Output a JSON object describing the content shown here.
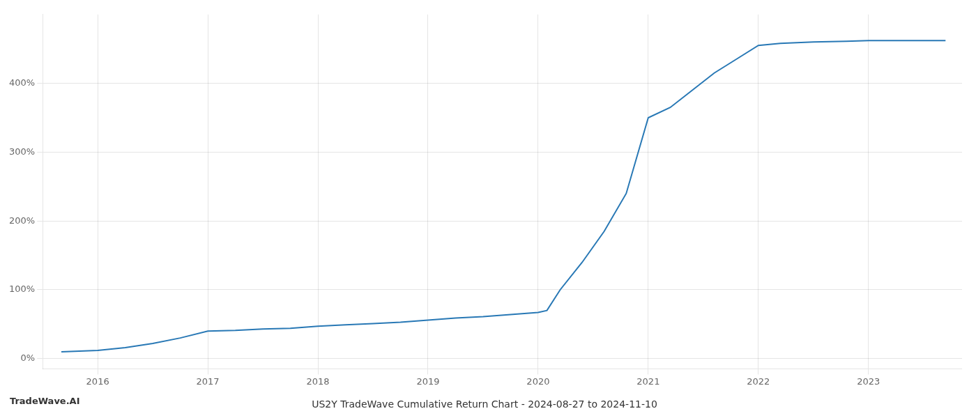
{
  "chart_data": {
    "type": "line",
    "title": "US2Y TradeWave Cumulative Return Chart - 2024-08-27 to 2024-11-10",
    "annotations": [
      "TradeWave.AI"
    ],
    "x": [
      2015.67,
      2016.0,
      2016.25,
      2016.5,
      2016.75,
      2017.0,
      2017.25,
      2017.5,
      2017.75,
      2018.0,
      2018.25,
      2018.5,
      2018.75,
      2019.0,
      2019.25,
      2019.5,
      2019.75,
      2020.0,
      2020.08,
      2020.2,
      2020.4,
      2020.6,
      2020.8,
      2021.0,
      2021.2,
      2021.4,
      2021.6,
      2021.8,
      2022.0,
      2022.2,
      2022.5,
      2022.8,
      2023.0,
      2023.3,
      2023.7
    ],
    "values": [
      10,
      12,
      16,
      22,
      30,
      40,
      41,
      43,
      44,
      47,
      49,
      51,
      53,
      56,
      59,
      61,
      64,
      67,
      70,
      100,
      140,
      185,
      240,
      350,
      365,
      390,
      415,
      435,
      455,
      458,
      460,
      461,
      462,
      462,
      462
    ],
    "color": "#2878b5",
    "xlim": [
      2015.5,
      2023.85
    ],
    "ylim": [
      -15,
      500
    ],
    "xticks": [
      2016,
      2017,
      2018,
      2019,
      2020,
      2021,
      2022,
      2023
    ],
    "yticks": [
      {
        "value": 0,
        "label": "0%"
      },
      {
        "value": 100,
        "label": "100%"
      },
      {
        "value": 200,
        "label": "200%"
      },
      {
        "value": 300,
        "label": "300%"
      },
      {
        "value": 400,
        "label": "400%"
      }
    ],
    "grid": true
  }
}
